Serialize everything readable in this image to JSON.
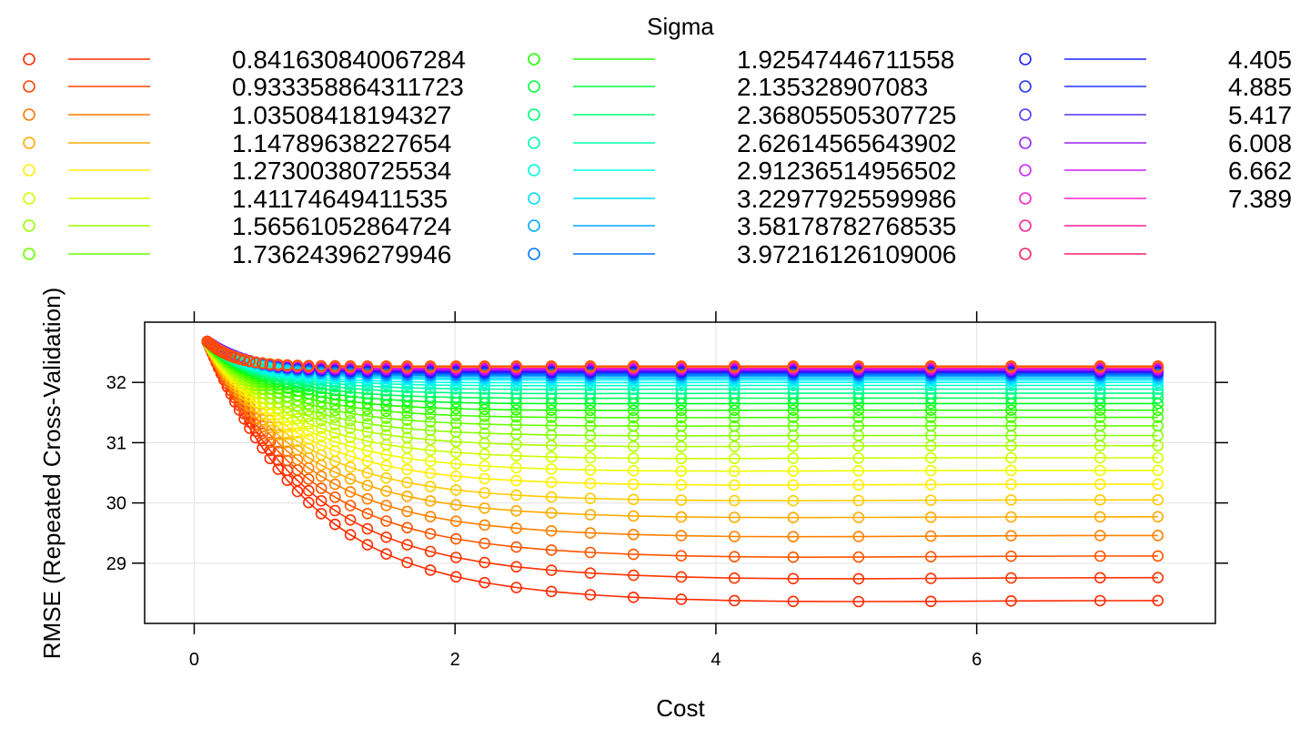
{
  "chart_data": {
    "type": "line",
    "title": "",
    "xlabel": "Cost",
    "ylabel": "RMSE (Repeated Cross-Validation)",
    "legend_title": "Sigma",
    "legend_position": "top",
    "legend_visible_labels": [
      "0.841630840067284",
      "0.933358864311723",
      "1.03508418194327",
      "1.14789638227654",
      "1.27300380725534",
      "1.41174649411535",
      "1.56561052864724",
      "1.73624396279946",
      "1.92547446711558",
      "2.135328907083",
      "2.36805505307725",
      "2.62614565643902",
      "2.91236514956502",
      "3.22977925599986",
      "3.58178782768535",
      "3.97216126109006",
      "4.405",
      "4.885",
      "5.417",
      "6.008",
      "6.662",
      "7.389"
    ],
    "xlim": [
      -0.38,
      7.83
    ],
    "ylim": [
      28.0,
      33.0
    ],
    "xticks": [
      0,
      2,
      4,
      6
    ],
    "yticks": [
      29,
      30,
      31,
      32
    ],
    "grid": true,
    "x": [
      0.1,
      0.111,
      0.123,
      0.136,
      0.151,
      0.168,
      0.186,
      0.206,
      0.229,
      0.254,
      0.282,
      0.312,
      0.346,
      0.384,
      0.426,
      0.472,
      0.524,
      0.581,
      0.644,
      0.714,
      0.792,
      0.878,
      0.974,
      1.08,
      1.197,
      1.328,
      1.473,
      1.633,
      1.811,
      2.008,
      2.227,
      2.47,
      2.739,
      3.037,
      3.368,
      3.735,
      4.142,
      4.593,
      5.094,
      5.649,
      6.264,
      6.946,
      7.389
    ],
    "series_styles": [
      {
        "color": "#ff2a00"
      },
      {
        "color": "#ff3300"
      },
      {
        "color": "#ff5500"
      },
      {
        "color": "#ff8000"
      },
      {
        "color": "#ffaa00"
      },
      {
        "color": "#ffcc00"
      },
      {
        "color": "#ffee00"
      },
      {
        "color": "#eeff00"
      },
      {
        "color": "#ccff00"
      },
      {
        "color": "#aaff00"
      },
      {
        "color": "#88ff00"
      },
      {
        "color": "#66ff00"
      },
      {
        "color": "#44ff00"
      },
      {
        "color": "#22ff00"
      },
      {
        "color": "#00ff22"
      },
      {
        "color": "#00ff55"
      },
      {
        "color": "#00ff88"
      },
      {
        "color": "#00ffaa"
      },
      {
        "color": "#00ffcc"
      },
      {
        "color": "#00ffee"
      },
      {
        "color": "#00eeff"
      },
      {
        "color": "#00ccff"
      },
      {
        "color": "#00aaff"
      },
      {
        "color": "#0088ff"
      },
      {
        "color": "#0066ff"
      },
      {
        "color": "#0044ff"
      },
      {
        "color": "#1a22ff"
      },
      {
        "color": "#3311ff"
      },
      {
        "color": "#5511ff"
      },
      {
        "color": "#7711ff"
      },
      {
        "color": "#9911ff"
      },
      {
        "color": "#bb11ff"
      },
      {
        "color": "#dd11ee"
      },
      {
        "color": "#ff11dd"
      },
      {
        "color": "#ff1199"
      },
      {
        "color": "#ff2266"
      },
      {
        "color": "#ff6600"
      },
      {
        "color": "#ff9900"
      },
      {
        "color": "#ffd400"
      },
      {
        "color": "#ff4400"
      }
    ],
    "series_end_values": [
      28.38,
      28.76,
      29.12,
      29.46,
      29.77,
      30.05,
      30.31,
      30.54,
      30.75,
      30.95,
      31.12,
      31.28,
      31.42,
      31.54,
      31.65,
      31.74,
      31.82,
      31.89,
      31.95,
      32.0,
      32.04,
      32.07,
      32.1,
      32.12,
      32.14,
      32.16,
      32.17,
      32.18,
      32.19,
      32.2,
      32.21,
      32.22,
      32.23,
      32.24,
      32.25,
      32.25,
      32.26,
      32.26,
      32.27,
      32.27
    ],
    "series_min_x": [
      4.5,
      4.4,
      4.3,
      4.2,
      4.1,
      4.0,
      3.8,
      3.6,
      3.4,
      3.2,
      3.0,
      2.8,
      2.6,
      2.4,
      2.2,
      2.0,
      1.9,
      1.8,
      1.7,
      1.6,
      1.5,
      1.45,
      1.4,
      1.35,
      1.3,
      1.25,
      1.2,
      1.15,
      1.1,
      1.05,
      1.0,
      1.0,
      1.0,
      1.0,
      1.0,
      1.0,
      1.0,
      1.0,
      1.0,
      1.0
    ],
    "series_min_dip": [
      0.03,
      0.03,
      0.03,
      0.03,
      0.02,
      0.02,
      0.02,
      0.02,
      0.02,
      0.02,
      0.01,
      0.01,
      0.01,
      0.01,
      0.01,
      0.01,
      0.01,
      0.01,
      0.01,
      0.01,
      0,
      0,
      0,
      0,
      0,
      0,
      0,
      0,
      0,
      0,
      0,
      0,
      0,
      0,
      0,
      0,
      0,
      0,
      0,
      0
    ],
    "series_start_value": 32.68,
    "legend_colors": [
      [
        "#ff2a00",
        "#ff4400",
        "#ff7700",
        "#ffaa00",
        "#ffee00",
        "#ccff00",
        "#99ff00",
        "#66ff00"
      ],
      [
        "#22ff00",
        "#00ff44",
        "#00ff77",
        "#00ffaa",
        "#00ffdd",
        "#00ddff",
        "#00aaff",
        "#0077ff"
      ],
      [
        "#1a22ff",
        "#2233ff",
        "#5533ff",
        "#9922ff",
        "#cc22ff",
        "#ff22cc",
        "#ff2299",
        "#ff2266"
      ]
    ]
  }
}
